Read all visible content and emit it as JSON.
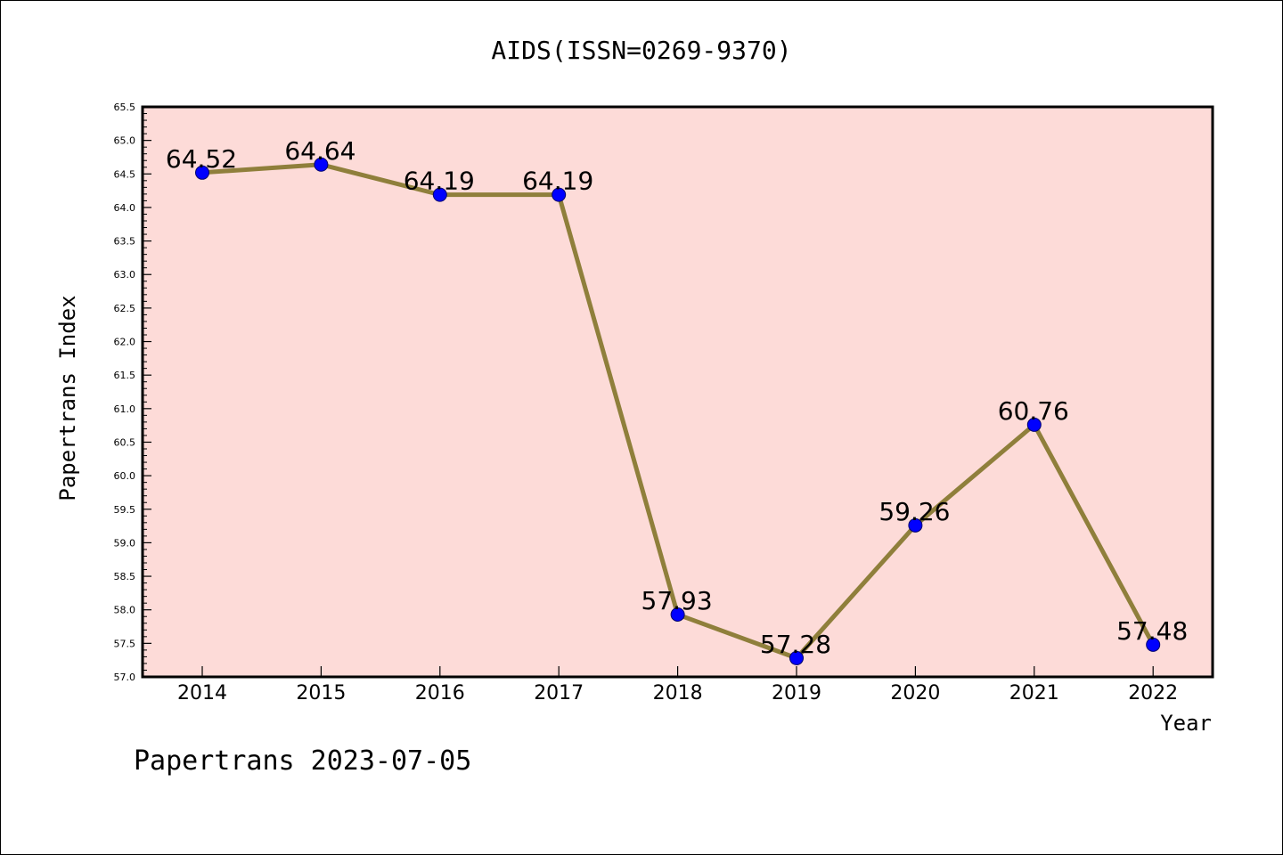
{
  "chart_data": {
    "type": "line",
    "title": "AIDS(ISSN=0269-9370)",
    "xlabel": "Year",
    "ylabel": "Papertrans Index",
    "categories": [
      "2014",
      "2015",
      "2016",
      "2017",
      "2018",
      "2019",
      "2020",
      "2021",
      "2022"
    ],
    "values": [
      64.52,
      64.64,
      64.19,
      64.19,
      57.93,
      57.28,
      59.26,
      60.76,
      57.48
    ],
    "data_labels": [
      "64.52",
      "64.64",
      "64.19",
      "64.19",
      "57.93",
      "57.28",
      "59.26",
      "60.76",
      "57.48"
    ],
    "ylim": [
      57.0,
      65.5
    ],
    "y_ticks": [
      "57.0",
      "57.5",
      "58.0",
      "58.5",
      "59.0",
      "59.5",
      "60.0",
      "60.5",
      "61.0",
      "61.5",
      "62.0",
      "62.5",
      "63.0",
      "63.5",
      "64.0",
      "64.5",
      "65.0",
      "65.5"
    ],
    "grid": false,
    "legend": "none",
    "colors": {
      "plot_background": "#fddbd8",
      "line": "#8f7f3b",
      "marker": "#0000ff"
    }
  },
  "footer": {
    "watermark": "Papertrans 2023-07-05"
  }
}
